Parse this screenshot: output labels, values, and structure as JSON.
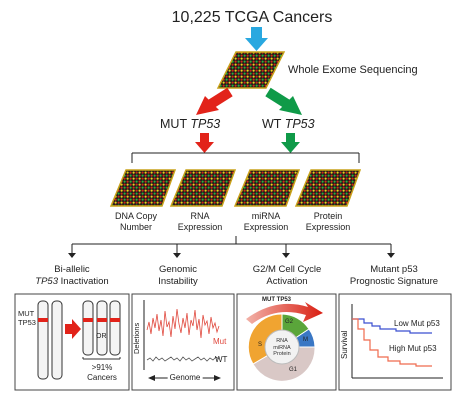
{
  "top_title": "10,225 TCGA Cancers",
  "wes_label": "Whole Exome Sequencing",
  "mut_label": {
    "prefix": "MUT",
    "gene": "TP53"
  },
  "wt_label": {
    "prefix": "WT",
    "gene": "TP53"
  },
  "assays": [
    {
      "line1": "DNA Copy",
      "line2": "Number"
    },
    {
      "line1": "RNA",
      "line2": "Expression"
    },
    {
      "line1": "miRNA",
      "line2": "Expression"
    },
    {
      "line1": "Protein",
      "line2": "Expression"
    }
  ],
  "outcomes": [
    {
      "line1": "Bi-allelic",
      "line2_gene": "TP53",
      "line2_rest": " Inactivation"
    },
    {
      "line1": "Genomic",
      "line2": "Instability"
    },
    {
      "line1": "G2/M Cell Cycle",
      "line2": "Activation"
    },
    {
      "line1": "Mutant p53",
      "line2": "Prognostic Signature"
    }
  ],
  "panel1": {
    "mut_label": "MUT",
    "tp53_label": "TP53",
    "or_label": "OR",
    "pct_label": ">91%",
    "cancers_label": "Cancers"
  },
  "panel2": {
    "ylabel": "Deletions",
    "mut_label": "Mut",
    "wt_label": "WT",
    "xlabel": "Genome"
  },
  "panel3": {
    "title": "MUT TP53",
    "center_lines": [
      "RNA",
      "miRNA",
      "Protein"
    ],
    "phase_labels": [
      "S",
      "G2",
      "M",
      "G1"
    ]
  },
  "panel4": {
    "ylabel": "Survival",
    "low_label": "Low Mut p53",
    "high_label": "High Mut p53"
  },
  "colors": {
    "arrow_blue": "#29a8e0",
    "arrow_red": "#e2231a",
    "arrow_green": "#0f9a48",
    "chip_border": "#c9a21a",
    "mut_line": "#e0473c",
    "low_line": "#3b4fd0",
    "high_line": "#ef6a4e"
  }
}
